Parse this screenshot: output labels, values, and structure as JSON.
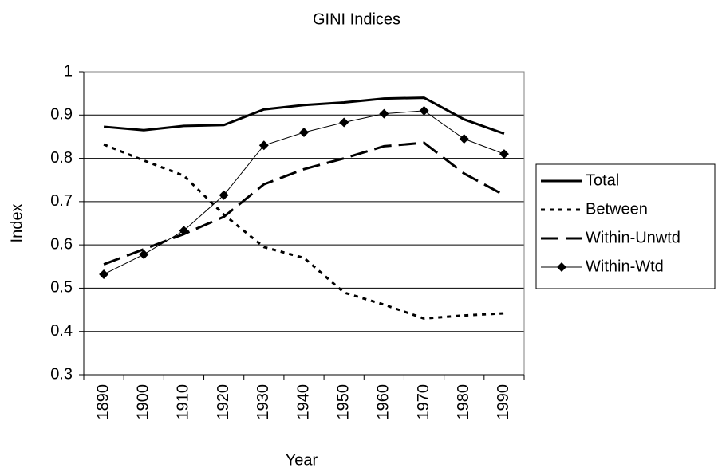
{
  "chart_data": {
    "type": "line",
    "title": "GINI Indices",
    "x_label": "Year",
    "y_label": "Index",
    "categories": [
      "1890",
      "1900",
      "1910",
      "1920",
      "1930",
      "1940",
      "1950",
      "1960",
      "1970",
      "1980",
      "1990"
    ],
    "series": [
      {
        "name": "Total",
        "color": "#000000",
        "line_style": "solid",
        "values": [
          0.873,
          0.865,
          0.875,
          0.877,
          0.913,
          0.923,
          0.929,
          0.938,
          0.94,
          0.89,
          0.857
        ]
      },
      {
        "name": "Between",
        "color": "#000000",
        "line_style": "dotted",
        "values": [
          0.832,
          0.795,
          0.76,
          0.67,
          0.595,
          0.57,
          0.49,
          0.462,
          0.43,
          0.437,
          0.442
        ]
      },
      {
        "name": "Within-Unwtd",
        "color": "#000000",
        "line_style": "dashed",
        "values": [
          0.555,
          0.59,
          0.625,
          0.665,
          0.74,
          0.775,
          0.8,
          0.828,
          0.836,
          0.765,
          0.715
        ]
      },
      {
        "name": "Within-Wtd",
        "color": "#000000",
        "line_style": "thin",
        "marker": "diamond",
        "values": [
          0.532,
          0.578,
          0.633,
          0.715,
          0.83,
          0.86,
          0.883,
          0.903,
          0.91,
          0.845,
          0.81
        ]
      }
    ],
    "ylim": [
      0.3,
      1
    ],
    "yticks": [
      0.3,
      0.4,
      0.5,
      0.6,
      0.7,
      0.8,
      0.9,
      1
    ],
    "grid": true,
    "legend": "right"
  }
}
